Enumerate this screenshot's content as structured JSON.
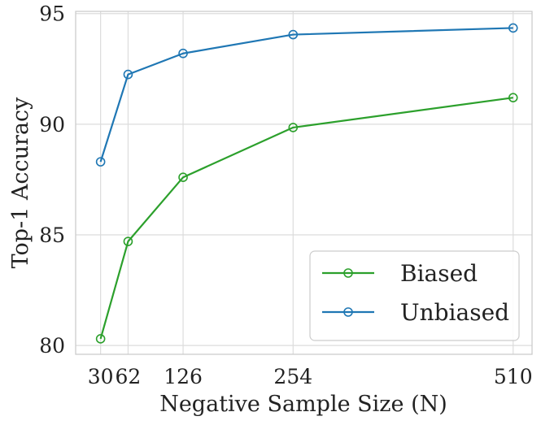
{
  "chart_data": {
    "type": "line",
    "title": "",
    "xlabel": "Negative Sample Size (N)",
    "ylabel": "Top-1 Accuracy",
    "x": [
      30,
      62,
      126,
      254,
      510
    ],
    "x_tick_labels": [
      "30",
      "62",
      "126",
      "254",
      "510"
    ],
    "xlim": [
      1,
      532
    ],
    "ylim": [
      79.6,
      95.1
    ],
    "y_ticks": [
      80,
      85,
      90,
      95
    ],
    "y_tick_labels": [
      "80",
      "85",
      "90",
      "95"
    ],
    "grid": true,
    "legend_position": "lower-right",
    "series": [
      {
        "name": "Biased",
        "color": "#2ca02c",
        "values": [
          80.3,
          84.7,
          87.6,
          89.85,
          91.2
        ]
      },
      {
        "name": "Unbiased",
        "color": "#1f77b4",
        "values": [
          88.3,
          92.25,
          93.2,
          94.05,
          94.35
        ]
      }
    ]
  }
}
